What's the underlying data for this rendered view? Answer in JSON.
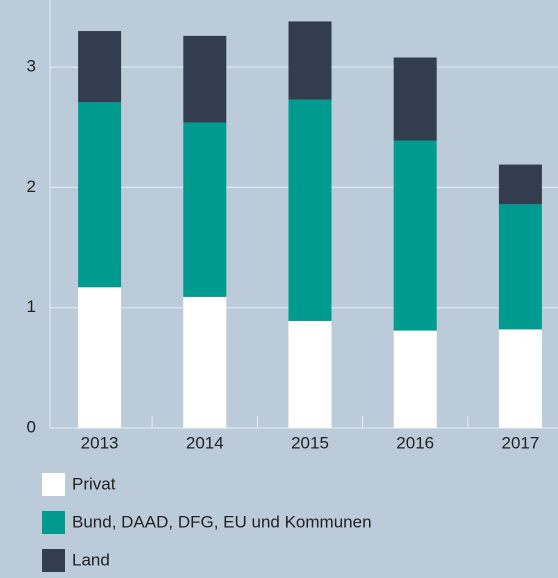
{
  "chart_data": {
    "type": "stacked_bar",
    "categories": [
      "2013",
      "2014",
      "2015",
      "2016",
      "2017"
    ],
    "series": [
      {
        "name": "Privat",
        "color": "#ffffff",
        "values": [
          1.17,
          1.09,
          0.89,
          0.81,
          0.82
        ]
      },
      {
        "name": "Bund, DAAD, DFG, EU und Kommunen",
        "color": "#009b8f",
        "values": [
          1.54,
          1.45,
          1.84,
          1.58,
          1.04
        ]
      },
      {
        "name": "Land",
        "color": "#323e50",
        "values": [
          0.59,
          0.72,
          0.65,
          0.69,
          0.33
        ]
      }
    ],
    "ylim": [
      0,
      3.5
    ],
    "yticks": [
      0,
      1,
      2,
      3
    ],
    "grid": true
  }
}
